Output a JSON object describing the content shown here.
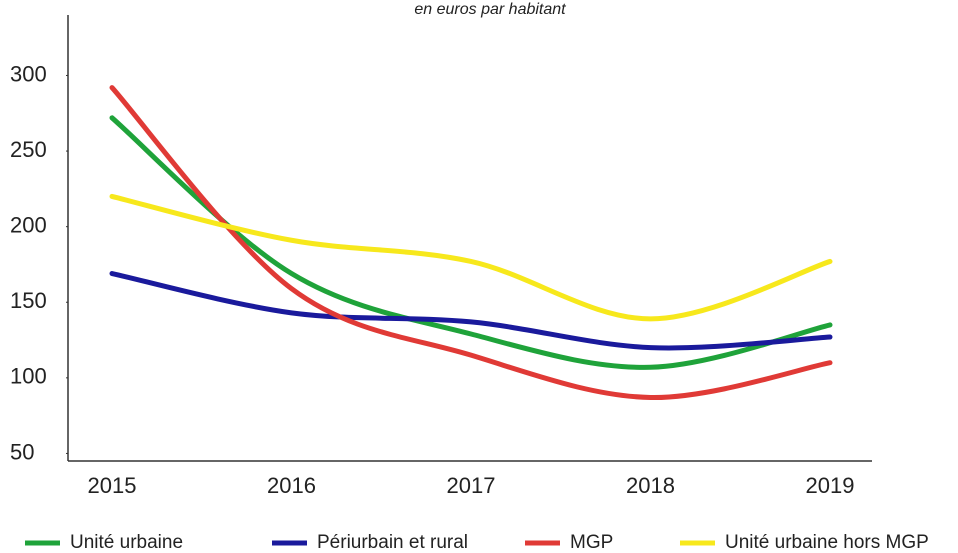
{
  "chart_data": {
    "type": "line",
    "subtitle": "en euros par habitant",
    "categories": [
      "2015",
      "2016",
      "2017",
      "2018",
      "2019"
    ],
    "series": [
      {
        "name": "Unité urbaine",
        "color": "#1fa33a",
        "values": [
          272,
          169,
          129,
          107,
          135
        ]
      },
      {
        "name": "Périurbain et rural",
        "color": "#1a1a9c",
        "values": [
          169,
          143,
          137,
          120,
          127
        ]
      },
      {
        "name": "MGP",
        "color": "#e03a36",
        "values": [
          292,
          159,
          115,
          87,
          110
        ]
      },
      {
        "name": "Unité urbaine hors MGP",
        "color": "#f7e81c",
        "values": [
          220,
          191,
          177,
          139,
          177
        ]
      }
    ],
    "ylim": [
      45,
      340
    ],
    "yticks": [
      50,
      100,
      150,
      200,
      250,
      300
    ],
    "grid": false,
    "legend": "bottom"
  }
}
